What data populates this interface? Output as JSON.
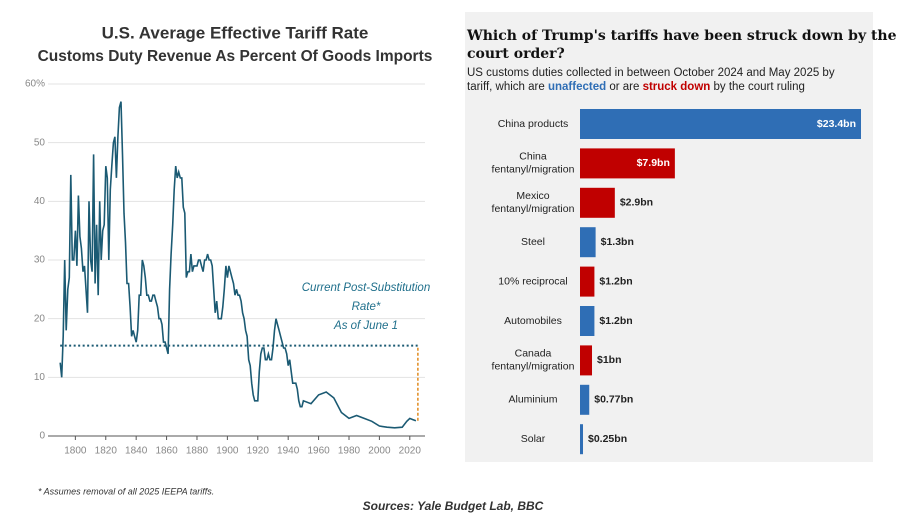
{
  "chart_data": [
    {
      "type": "line",
      "title": "U.S. Average Effective Tariff  Rate",
      "subtitle": "Customs Duty Revenue As Percent Of Goods Imports",
      "annotation": [
        "Current Post-Substitution",
        "Rate*",
        "As of June 1"
      ],
      "footnote": "* Assumes removal of all 2025 IEEPA tariffs.",
      "color": "#1b5a73",
      "reference_line": 15.4,
      "reference_color": "#1b5a73",
      "connector_color": "#e08a1e",
      "grid": true,
      "xlim": [
        1782,
        2030
      ],
      "xticks": [
        1800,
        1820,
        1840,
        1860,
        1880,
        1900,
        1920,
        1940,
        1960,
        1980,
        2000,
        2020
      ],
      "ylim": [
        0,
        60
      ],
      "yticks": [
        0,
        10,
        20,
        30,
        40,
        50,
        {
          "value": 60,
          "label": "60%"
        }
      ],
      "x": [
        1790,
        1791,
        1792,
        1793,
        1794,
        1795,
        1796,
        1797,
        1798,
        1799,
        1800,
        1801,
        1802,
        1803,
        1804,
        1805,
        1806,
        1807,
        1808,
        1809,
        1810,
        1811,
        1812,
        1813,
        1814,
        1815,
        1816,
        1817,
        1818,
        1819,
        1820,
        1821,
        1822,
        1823,
        1824,
        1825,
        1826,
        1827,
        1828,
        1829,
        1830,
        1831,
        1832,
        1833,
        1834,
        1835,
        1836,
        1837,
        1838,
        1839,
        1840,
        1841,
        1842,
        1843,
        1844,
        1845,
        1846,
        1847,
        1848,
        1849,
        1850,
        1851,
        1852,
        1853,
        1854,
        1855,
        1856,
        1857,
        1858,
        1859,
        1860,
        1861,
        1862,
        1863,
        1864,
        1865,
        1866,
        1867,
        1868,
        1869,
        1870,
        1871,
        1872,
        1873,
        1874,
        1875,
        1876,
        1877,
        1878,
        1879,
        1880,
        1881,
        1882,
        1883,
        1884,
        1885,
        1886,
        1887,
        1888,
        1889,
        1890,
        1891,
        1892,
        1893,
        1894,
        1895,
        1896,
        1897,
        1898,
        1899,
        1900,
        1901,
        1902,
        1903,
        1904,
        1905,
        1906,
        1907,
        1908,
        1909,
        1910,
        1911,
        1912,
        1913,
        1914,
        1915,
        1916,
        1917,
        1918,
        1919,
        1920,
        1921,
        1922,
        1923,
        1924,
        1925,
        1926,
        1927,
        1928,
        1929,
        1930,
        1931,
        1932,
        1933,
        1934,
        1935,
        1936,
        1937,
        1938,
        1939,
        1940,
        1941,
        1942,
        1943,
        1944,
        1945,
        1946,
        1947,
        1948,
        1949,
        1950,
        1955,
        1960,
        1965,
        1970,
        1975,
        1980,
        1985,
        1990,
        1995,
        2000,
        2005,
        2010,
        2015,
        2018,
        2020,
        2022,
        2024
      ],
      "values": [
        12.5,
        10,
        17,
        30,
        18,
        25,
        27,
        44.5,
        30,
        30,
        35,
        29,
        41,
        34,
        32,
        28,
        29,
        25,
        21,
        40,
        30,
        28,
        48,
        26,
        36,
        24,
        40,
        30,
        35,
        36,
        46,
        44,
        30,
        42,
        46,
        50,
        51,
        44,
        51,
        56,
        57,
        48,
        38,
        33,
        26,
        26,
        22,
        17,
        18,
        17,
        16,
        18,
        24,
        24,
        30,
        29,
        27,
        24,
        24,
        23,
        23,
        24,
        24,
        23,
        22,
        20,
        20,
        19,
        16,
        16,
        15,
        14,
        25,
        31,
        36,
        42,
        46,
        44,
        45,
        44,
        44,
        39,
        38,
        27,
        28,
        28,
        31,
        28,
        29,
        29,
        29,
        30,
        30,
        29,
        28,
        30,
        30,
        31,
        30,
        30,
        29,
        25,
        21,
        23,
        20,
        20,
        20,
        22,
        25,
        29,
        27,
        29,
        28,
        27,
        26,
        24,
        25,
        24,
        24,
        23,
        21,
        20,
        18,
        17,
        13,
        12,
        9,
        7,
        6,
        6,
        6,
        11,
        14,
        15,
        15,
        13,
        13,
        14,
        13,
        13,
        15,
        18,
        20,
        19,
        18,
        17,
        16,
        15,
        15,
        14,
        12,
        13,
        11,
        9,
        9,
        9,
        8,
        6,
        5,
        5,
        6,
        5.5,
        7,
        7.5,
        6.5,
        4,
        3,
        3.5,
        3,
        2.5,
        1.7,
        1.5,
        1.4,
        1.5,
        2.5,
        3,
        2.8,
        2.6
      ]
    },
    {
      "type": "bar",
      "orientation": "horizontal",
      "title": [
        "Which of Trump's tariffs have been struck down by the",
        "court order?"
      ],
      "subtitle": [
        [
          "US customs duties collected in between October 2024 and May 2025 by"
        ],
        [
          "tariff, which are ",
          "unaffected",
          " or are ",
          "struck down",
          " by the court ruling"
        ]
      ],
      "categories": [
        [
          "China products"
        ],
        [
          "China",
          "fentanyl/migration"
        ],
        [
          "Mexico",
          "fentanyl/migration"
        ],
        [
          "Steel"
        ],
        [
          "10% reciprocal"
        ],
        [
          "Automobiles"
        ],
        [
          "Canada",
          "fentanyl/migration"
        ],
        [
          "Aluminium"
        ],
        [
          "Solar"
        ]
      ],
      "values": [
        23.4,
        7.9,
        2.9,
        1.3,
        1.2,
        1.2,
        1,
        0.77,
        0.25
      ],
      "value_labels": [
        "$23.4bn",
        "$7.9bn",
        "$2.9bn",
        "$1.3bn",
        "$1.2bn",
        "$1.2bn",
        "$1bn",
        "$0.77bn",
        "$0.25bn"
      ],
      "colors": [
        "#2f6eb5",
        "#c00000",
        "#c00000",
        "#2f6eb5",
        "#c00000",
        "#2f6eb5",
        "#c00000",
        "#2f6eb5",
        "#2f6eb5"
      ]
    }
  ],
  "source": "Sources: Yale Budget Lab, BBC"
}
